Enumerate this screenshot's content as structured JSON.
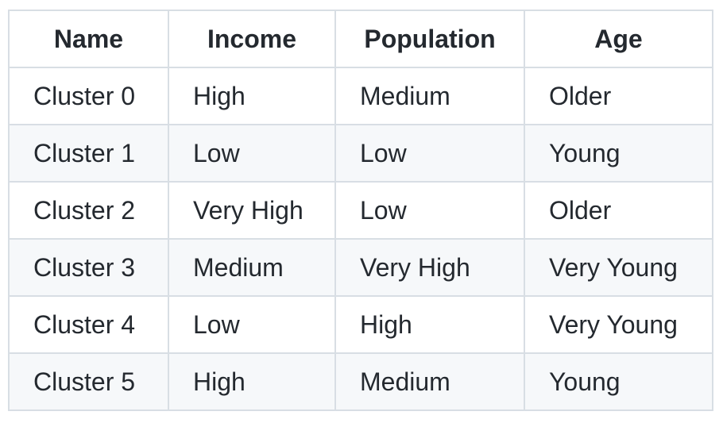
{
  "table": {
    "headers": [
      "Name",
      "Income",
      "Population",
      "Age"
    ],
    "rows": [
      [
        "Cluster 0",
        "High",
        "Medium",
        "Older"
      ],
      [
        "Cluster 1",
        "Low",
        "Low",
        "Young"
      ],
      [
        "Cluster 2",
        "Very High",
        "Low",
        "Older"
      ],
      [
        "Cluster 3",
        "Medium",
        "Very High",
        "Very Young"
      ],
      [
        "Cluster 4",
        "Low",
        "High",
        "Very Young"
      ],
      [
        "Cluster 5",
        "High",
        "Medium",
        "Young"
      ]
    ]
  }
}
